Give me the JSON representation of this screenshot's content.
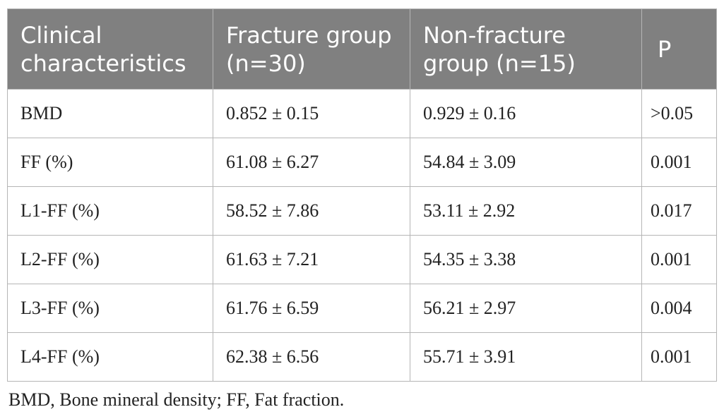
{
  "table": {
    "headers": [
      "Clinical characteristics",
      "Fracture group (n=30)",
      "Non-fracture group (n=15)",
      "P"
    ],
    "rows": [
      [
        "BMD",
        "0.852 ± 0.15",
        "0.929 ± 0.16",
        ">0.05"
      ],
      [
        "FF (%)",
        "61.08 ± 6.27",
        "54.84 ± 3.09",
        "0.001"
      ],
      [
        "L1-FF (%)",
        "58.52 ± 7.86",
        "53.11 ± 2.92",
        "0.017"
      ],
      [
        "L2-FF (%)",
        "61.63 ± 7.21",
        "54.35 ± 3.38",
        "0.001"
      ],
      [
        "L3-FF (%)",
        "61.76 ± 6.59",
        "56.21 ± 2.97",
        "0.004"
      ],
      [
        "L4-FF (%)",
        "62.38 ± 6.56",
        "55.71 ± 3.91",
        "0.001"
      ]
    ]
  },
  "footnote": "BMD, Bone mineral density; FF, Fat fraction.",
  "colors": {
    "header_bg": "#808080",
    "header_text": "#ffffff",
    "border": "#b5b5b5",
    "body_text": "#222222"
  }
}
